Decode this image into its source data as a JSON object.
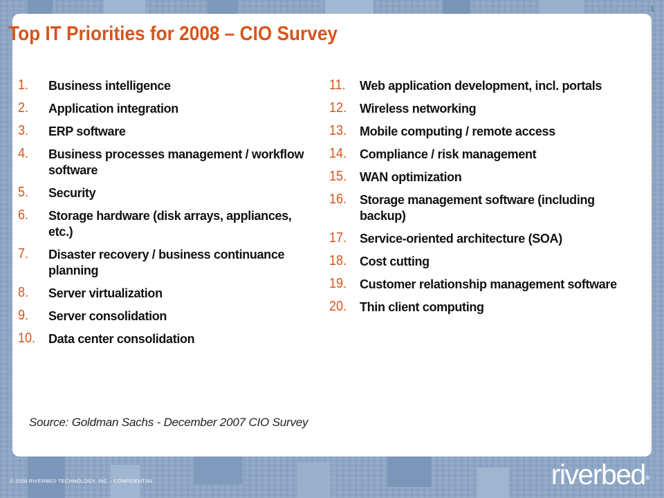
{
  "page_number": "5",
  "title": "Top IT Priorities for 2008 – CIO Survey",
  "left_items": [
    {
      "num": "1.",
      "text": "Business intelligence"
    },
    {
      "num": "2.",
      "text": "Application integration"
    },
    {
      "num": "3.",
      "text": "ERP software"
    },
    {
      "num": "4.",
      "text": "Business processes management / workflow software"
    },
    {
      "num": "5.",
      "text": "Security"
    },
    {
      "num": "6.",
      "text": "Storage hardware (disk arrays, appliances, etc.)"
    },
    {
      "num": "7.",
      "text": "Disaster recovery / business continuance planning"
    },
    {
      "num": "8.",
      "text": "Server virtualization"
    },
    {
      "num": "9.",
      "text": "Server consolidation"
    },
    {
      "num": "10.",
      "text": "Data center consolidation"
    }
  ],
  "right_items": [
    {
      "num": "11.",
      "text": "Web application development, incl. portals"
    },
    {
      "num": "12.",
      "text": "Wireless networking"
    },
    {
      "num": "13.",
      "text": "Mobile computing / remote access"
    },
    {
      "num": "14.",
      "text": "Compliance / risk management"
    },
    {
      "num": "15.",
      "text": "WAN optimization"
    },
    {
      "num": "16.",
      "text": "Storage management software (including backup)"
    },
    {
      "num": "17.",
      "text": "Service-oriented architecture (SOA)"
    },
    {
      "num": "18.",
      "text": "Cost cutting"
    },
    {
      "num": "19.",
      "text": "Customer relationship management software"
    },
    {
      "num": "20.",
      "text": "Thin client computing"
    }
  ],
  "source": "Source: Goldman Sachs - December 2007 CIO Survey",
  "footer": "© 2006 RIVERBED TECHNOLOGY, INC – CONFIDENTIAL",
  "logo": {
    "text": "riverbed",
    "tm": "®"
  },
  "colors": {
    "accent": "#d8541a",
    "frame": "#8ea7c6",
    "text": "#111111"
  }
}
